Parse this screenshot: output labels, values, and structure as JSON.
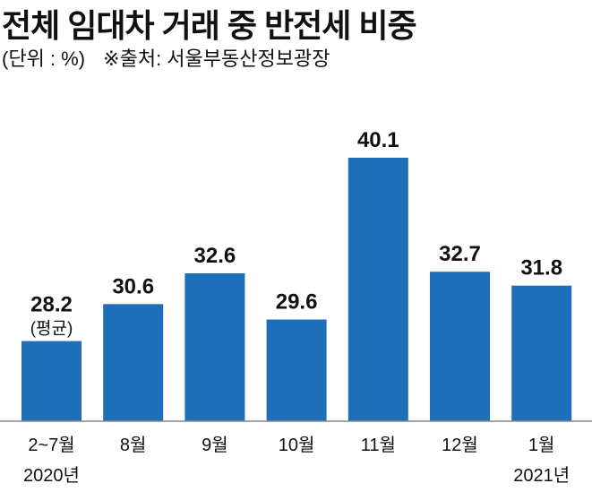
{
  "title": "전체 임대차 거래 중 반전세 비중",
  "subtitle": {
    "unit": "(단위 : %)",
    "source": "※출처: 서울부동산정보광장"
  },
  "colors": {
    "bar": "#1f6fb8",
    "axis": "#888888"
  },
  "chart_data": {
    "type": "bar",
    "title": "전체 임대차 거래 중 반전세 비중",
    "ylabel": "%",
    "xlabel": "",
    "ylim": [
      23,
      40.1
    ],
    "grid": false,
    "categories": [
      "2~7월",
      "8월",
      "9월",
      "10월",
      "11월",
      "12월",
      "1월"
    ],
    "category_sublabels": [
      "2020년",
      "",
      "",
      "",
      "",
      "",
      "2021년"
    ],
    "values": [
      28.2,
      30.6,
      32.6,
      29.6,
      40.1,
      32.7,
      31.8
    ],
    "value_labels": [
      "28.2",
      "30.6",
      "32.6",
      "29.6",
      "40.1",
      "32.7",
      "31.8"
    ],
    "annotations": [
      "(평균)",
      "",
      "",
      "",
      "",
      "",
      ""
    ]
  }
}
